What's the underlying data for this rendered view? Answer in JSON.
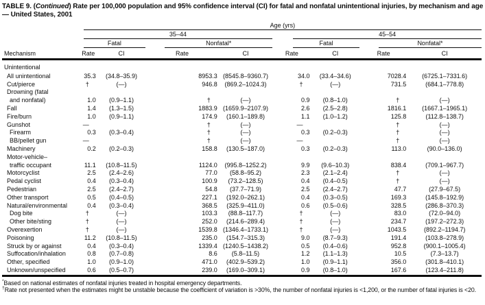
{
  "title": {
    "part1": "TABLE 9. (",
    "italic": "Continued",
    "part2": ") Rate per 100,000 population and 95% confidence interval (CI) for fatal and nonfatal unintentional injuries, by mechanism and age — United States, 2001"
  },
  "header": {
    "age_label": "Age (yrs)",
    "age_groups": [
      "35–44",
      "45–54"
    ],
    "outcome_groups": [
      "Fatal",
      "Nonfatal*",
      "Fatal",
      "Nonfatal*"
    ],
    "mechanism_label": "Mechanism",
    "measure_labels": [
      "Rate",
      "CI",
      "Rate",
      "CI",
      "Rate",
      "CI",
      "Rate",
      "CI"
    ]
  },
  "rows": [
    {
      "label": "Unintentional",
      "indent": 0,
      "cells": [
        "",
        "",
        "",
        "",
        "",
        "",
        "",
        ""
      ]
    },
    {
      "label": "All unintentional",
      "indent": 1,
      "cells": [
        "35.3",
        "(34.8–35.9)",
        "8953.3",
        "(8545.8–9360.7)",
        "34.0",
        "(33.4–34.6)",
        "7028.4",
        "(6725.1–7331.6)"
      ]
    },
    {
      "label": "Cut/pierce",
      "indent": 1,
      "cells": [
        "†",
        "(—)",
        "946.8",
        "(869.2–1024.3)",
        "†",
        "(—)",
        "731.5",
        "(684.1–778.8)"
      ]
    },
    {
      "label": "Drowning (fatal",
      "indent": 1,
      "cells": [
        "",
        "",
        "",
        "",
        "",
        "",
        "",
        ""
      ]
    },
    {
      "label": "and nonfatal)",
      "indent": 2,
      "cells": [
        "1.0",
        "(0.9–1.1)",
        "†",
        "(—)",
        "0.9",
        "(0.8–1.0)",
        "†",
        "(—)"
      ]
    },
    {
      "label": "Fall",
      "indent": 1,
      "cells": [
        "1.4",
        "(1.3–1.5)",
        "1883.9",
        "(1659.9–2107.9)",
        "2.6",
        "(2.5–2.8)",
        "1816.1",
        "(1667.1–1965.1)"
      ]
    },
    {
      "label": "Fire/burn",
      "indent": 1,
      "cells": [
        "1.0",
        "(0.9–1.1)",
        "174.9",
        "(160.1–189.8)",
        "1.1",
        "(1.0–1.2)",
        "125.8",
        "(112.8–138.7)"
      ]
    },
    {
      "label": "Gunshot",
      "indent": 1,
      "cells": [
        "—",
        "",
        "†",
        "(—)",
        "—",
        "",
        "†",
        "(—)"
      ]
    },
    {
      "label": "Firearm",
      "indent": 2,
      "cells": [
        "0.3",
        "(0.3–0.4)",
        "†",
        "(—)",
        "0.3",
        "(0.2–0.3)",
        "†",
        "(—)"
      ]
    },
    {
      "label": "BB/pellet gun",
      "indent": 2,
      "cells": [
        "—",
        "",
        "†",
        "(—)",
        "—",
        "",
        "†",
        "(—)"
      ]
    },
    {
      "label": "Machinery",
      "indent": 1,
      "cells": [
        "0.2",
        "(0.2–0.3)",
        "158.8",
        "(130.5–187.0)",
        "0.3",
        "(0.2–0.3)",
        "113.0",
        "(90.0–136.0)"
      ]
    },
    {
      "label": "Motor-vehicle–",
      "indent": 1,
      "cells": [
        "",
        "",
        "",
        "",
        "",
        "",
        "",
        ""
      ]
    },
    {
      "label": "traffic occupant",
      "indent": 2,
      "cells": [
        "11.1",
        "(10.8–11.5)",
        "1124.0",
        "(995.8–1252.2)",
        "9.9",
        "(9.6–10.3)",
        "838.4",
        "(709.1–967.7)"
      ]
    },
    {
      "label": "Motorcyclist",
      "indent": 1,
      "cells": [
        "2.5",
        "(2.4–2.6)",
        "77.0",
        "(58.8–95.2)",
        "2.3",
        "(2.1–2.4)",
        "†",
        "(—)"
      ]
    },
    {
      "label": "Pedal cyclist",
      "indent": 1,
      "cells": [
        "0.4",
        "(0.3–0.4)",
        "100.9",
        "(73.2–128.5)",
        "0.4",
        "(0.4–0.5)",
        "†",
        "(—)"
      ]
    },
    {
      "label": "Pedestrian",
      "indent": 1,
      "cells": [
        "2.5",
        "(2.4–2.7)",
        "54.8",
        "(37.7–71.9)",
        "2.5",
        "(2.4–2.7)",
        "47.7",
        "(27.9–67.5)"
      ]
    },
    {
      "label": "Other transport",
      "indent": 1,
      "cells": [
        "0.5",
        "(0.4–0.5)",
        "227.1",
        "(192.0–262.1)",
        "0.4",
        "(0.3–0.5)",
        "169.3",
        "(145.8–192.9)"
      ]
    },
    {
      "label": "Natural/environmental",
      "indent": 1,
      "cells": [
        "0.4",
        "(0.3–0.4)",
        "368.5",
        "(325.9–411.0)",
        "0.6",
        "(0.5–0.6)",
        "328.5",
        "(286.8–370.3)"
      ]
    },
    {
      "label": "Dog bite",
      "indent": 2,
      "cells": [
        "†",
        "(—)",
        "103.3",
        "(88.8–117.7)",
        "†",
        "(—)",
        "83.0",
        "(72.0–94.0)"
      ]
    },
    {
      "label": "Other bite/sting",
      "indent": 2,
      "cells": [
        "†",
        "(—)",
        "252.0",
        "(214.6–289.4)",
        "†",
        "(—)",
        "234.7",
        "(197.2–272.3)"
      ]
    },
    {
      "label": "Overexertion",
      "indent": 1,
      "cells": [
        "†",
        "(—)",
        "1539.8",
        "(1346.4–1733.1)",
        "†",
        "(—)",
        "1043.5",
        "(892.2–1194.7)"
      ]
    },
    {
      "label": "Poisoning",
      "indent": 1,
      "cells": [
        "11.2",
        "(10.8–11.5)",
        "235.0",
        "(154.7–315.3)",
        "9.0",
        "(8.7–9.3)",
        "191.4",
        "(103.8–278.9)"
      ]
    },
    {
      "label": "Struck by or against",
      "indent": 1,
      "cells": [
        "0.4",
        "(0.3–0.4)",
        "1339.4",
        "(1240.5–1438.2)",
        "0.5",
        "(0.4–0.6)",
        "952.8",
        "(900.1–1005.4)"
      ]
    },
    {
      "label": "Suffocation/inhalation",
      "indent": 1,
      "cells": [
        "0.8",
        "(0.7–0.8)",
        "8.6",
        "(5.8–11.5)",
        "1.2",
        "(1.1–1.3)",
        "10.5",
        "(7.3–13.7)"
      ]
    },
    {
      "label": "Other, specified",
      "indent": 1,
      "cells": [
        "1.0",
        "(0.9–1.0)",
        "471.0",
        "(402.9–539.2)",
        "1.0",
        "(0.9–1.1)",
        "356.0",
        "(301.8–410.1)"
      ]
    },
    {
      "label": "Unknown/unspecified",
      "indent": 1,
      "cells": [
        "0.6",
        "(0.5–0.7)",
        "239.0",
        "(169.0–309.1)",
        "0.9",
        "(0.8–1.0)",
        "167.6",
        "(123.4–211.8)"
      ]
    }
  ],
  "footnotes": [
    {
      "symbol": "*",
      "text": "Based on national estimates of nonfatal injuries treated in hospital emergency departments."
    },
    {
      "symbol": "†",
      "text": "Rate not presented when the estimates might be unstable because the coefficient of variation is >30%, the number of nonfatal injuries is <1,200, or the number of fatal injuries is <20."
    }
  ],
  "colors": {
    "text": "#0d0d0d",
    "background": "#ffffff"
  }
}
